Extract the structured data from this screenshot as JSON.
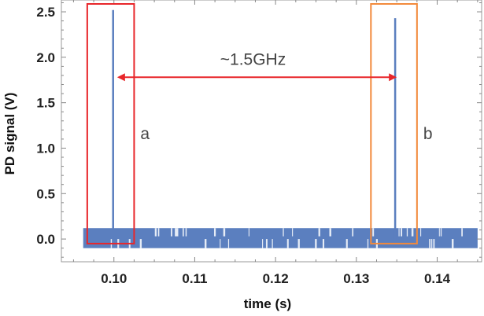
{
  "chart_data": {
    "type": "line",
    "title": "",
    "xlabel": "time (s)",
    "ylabel": "PD signal (V)",
    "xlim": [
      0.0935,
      0.1455
    ],
    "ylim": [
      -0.25,
      2.63
    ],
    "xticks": [
      "0.10",
      "0.11",
      "0.12",
      "0.13",
      "0.14"
    ],
    "xtick_values": [
      0.1,
      0.11,
      0.12,
      0.13,
      0.14
    ],
    "yticks": [
      "0.0",
      "0.5",
      "1.0",
      "1.5",
      "2.0",
      "2.5"
    ],
    "ytick_values": [
      0.0,
      0.5,
      1.0,
      1.5,
      2.0,
      2.5
    ],
    "noise": {
      "x_start": 0.0962,
      "x_end": 0.145,
      "low": -0.1,
      "high": 0.12
    },
    "series": [
      {
        "name": "PD signal",
        "color": "#5b7fbf",
        "peaks": [
          {
            "x": 0.0999,
            "y": 2.52
          },
          {
            "x": 0.1348,
            "y": 2.43
          }
        ]
      }
    ],
    "annotations": {
      "box_a": {
        "label": "a",
        "x_range": [
          0.0967,
          0.1025
        ],
        "color": "#e8262a"
      },
      "box_b": {
        "label": "b",
        "x_range": [
          0.1318,
          0.1375
        ],
        "color": "#f28a3c"
      },
      "arrow": {
        "label": "~1.5GHz",
        "from": 0.1004,
        "to": 0.135,
        "y": 1.78,
        "color": "#e8262a"
      }
    },
    "grid": false
  }
}
